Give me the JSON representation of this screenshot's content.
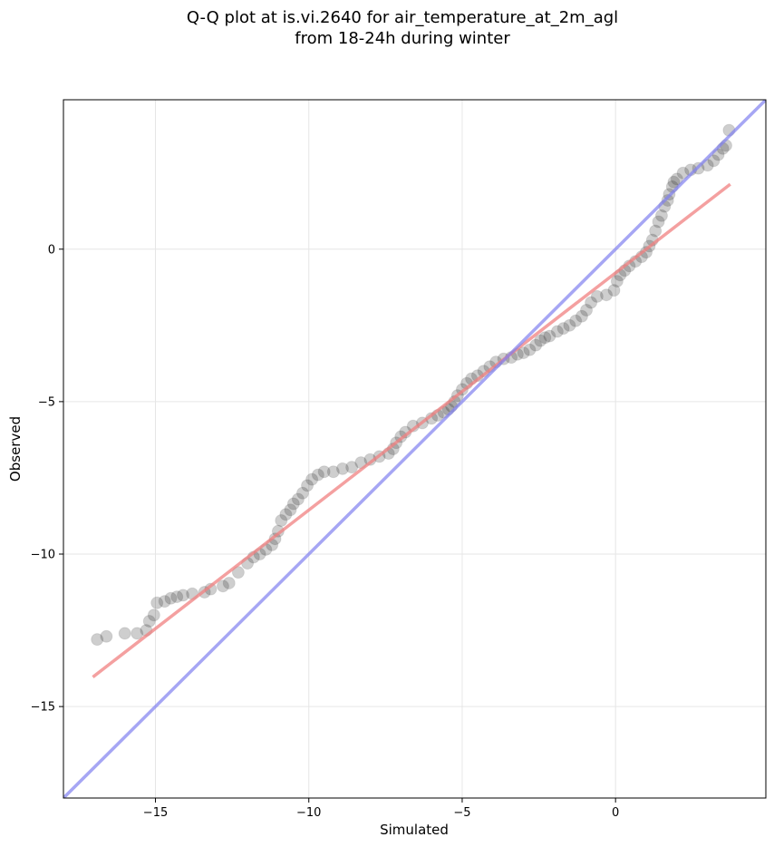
{
  "chart_data": {
    "type": "scatter",
    "title_lines": [
      "Q-Q plot at is.vi.2640 for air_temperature_at_2m_agl",
      "from 18-24h during winter"
    ],
    "xlabel": "Simulated",
    "ylabel": "Observed",
    "xlim": [
      -18.0,
      4.9
    ],
    "ylim": [
      -18.0,
      4.9
    ],
    "x_ticks": [
      -15,
      -10,
      -5,
      0
    ],
    "y_ticks": [
      -15,
      -10,
      -5,
      0
    ],
    "x_tick_labels": [
      "−15",
      "−10",
      "−5",
      "0"
    ],
    "y_tick_labels": [
      "−15",
      "−10",
      "−5",
      "0"
    ],
    "grid": true,
    "legend": "none",
    "colors": {
      "points": "#222222",
      "fit_line": "#f08080",
      "identity_line": "#8080f0",
      "grid": "#e6e6e6"
    },
    "series": [
      {
        "type": "scatter",
        "points": [
          [
            -16.9,
            -12.8
          ],
          [
            -16.6,
            -12.7
          ],
          [
            -16.0,
            -12.6
          ],
          [
            -15.6,
            -12.6
          ],
          [
            -15.3,
            -12.5
          ],
          [
            -15.2,
            -12.2
          ],
          [
            -15.05,
            -12.0
          ],
          [
            -14.95,
            -11.6
          ],
          [
            -14.7,
            -11.55
          ],
          [
            -14.5,
            -11.45
          ],
          [
            -14.3,
            -11.4
          ],
          [
            -14.1,
            -11.35
          ],
          [
            -13.8,
            -11.3
          ],
          [
            -13.4,
            -11.25
          ],
          [
            -13.2,
            -11.15
          ],
          [
            -12.8,
            -11.05
          ],
          [
            -12.6,
            -10.95
          ],
          [
            -12.3,
            -10.6
          ],
          [
            -12.0,
            -10.3
          ],
          [
            -11.8,
            -10.1
          ],
          [
            -11.6,
            -10.0
          ],
          [
            -11.4,
            -9.85
          ],
          [
            -11.2,
            -9.7
          ],
          [
            -11.1,
            -9.5
          ],
          [
            -11.0,
            -9.25
          ],
          [
            -10.9,
            -8.9
          ],
          [
            -10.75,
            -8.7
          ],
          [
            -10.6,
            -8.55
          ],
          [
            -10.5,
            -8.35
          ],
          [
            -10.35,
            -8.2
          ],
          [
            -10.2,
            -8.0
          ],
          [
            -10.05,
            -7.75
          ],
          [
            -9.9,
            -7.55
          ],
          [
            -9.7,
            -7.4
          ],
          [
            -9.5,
            -7.3
          ],
          [
            -9.2,
            -7.3
          ],
          [
            -8.9,
            -7.2
          ],
          [
            -8.6,
            -7.15
          ],
          [
            -8.3,
            -7.0
          ],
          [
            -8.0,
            -6.9
          ],
          [
            -7.7,
            -6.8
          ],
          [
            -7.4,
            -6.7
          ],
          [
            -7.25,
            -6.55
          ],
          [
            -7.15,
            -6.35
          ],
          [
            -7.0,
            -6.15
          ],
          [
            -6.85,
            -6.0
          ],
          [
            -6.6,
            -5.8
          ],
          [
            -6.3,
            -5.7
          ],
          [
            -6.0,
            -5.55
          ],
          [
            -5.8,
            -5.45
          ],
          [
            -5.6,
            -5.35
          ],
          [
            -5.45,
            -5.25
          ],
          [
            -5.35,
            -5.15
          ],
          [
            -5.25,
            -5.0
          ],
          [
            -5.15,
            -4.8
          ],
          [
            -5.0,
            -4.6
          ],
          [
            -4.85,
            -4.4
          ],
          [
            -4.7,
            -4.25
          ],
          [
            -4.5,
            -4.15
          ],
          [
            -4.3,
            -4.0
          ],
          [
            -4.1,
            -3.85
          ],
          [
            -3.9,
            -3.7
          ],
          [
            -3.65,
            -3.6
          ],
          [
            -3.4,
            -3.55
          ],
          [
            -3.2,
            -3.45
          ],
          [
            -3.0,
            -3.4
          ],
          [
            -2.8,
            -3.3
          ],
          [
            -2.6,
            -3.15
          ],
          [
            -2.45,
            -3.0
          ],
          [
            -2.3,
            -2.9
          ],
          [
            -2.15,
            -2.85
          ],
          [
            -1.9,
            -2.7
          ],
          [
            -1.7,
            -2.6
          ],
          [
            -1.5,
            -2.5
          ],
          [
            -1.3,
            -2.35
          ],
          [
            -1.1,
            -2.2
          ],
          [
            -0.95,
            -2.0
          ],
          [
            -0.8,
            -1.75
          ],
          [
            -0.6,
            -1.55
          ],
          [
            -0.3,
            -1.5
          ],
          [
            -0.05,
            -1.35
          ],
          [
            0.05,
            -1.05
          ],
          [
            0.15,
            -0.85
          ],
          [
            0.3,
            -0.7
          ],
          [
            0.45,
            -0.55
          ],
          [
            0.65,
            -0.4
          ],
          [
            0.85,
            -0.25
          ],
          [
            1.0,
            -0.1
          ],
          [
            1.1,
            0.1
          ],
          [
            1.2,
            0.3
          ],
          [
            1.3,
            0.6
          ],
          [
            1.4,
            0.9
          ],
          [
            1.5,
            1.1
          ],
          [
            1.6,
            1.4
          ],
          [
            1.7,
            1.6
          ],
          [
            1.75,
            1.8
          ],
          [
            1.85,
            2.05
          ],
          [
            1.9,
            2.2
          ],
          [
            2.0,
            2.3
          ],
          [
            2.2,
            2.5
          ],
          [
            2.45,
            2.6
          ],
          [
            2.7,
            2.65
          ],
          [
            3.0,
            2.75
          ],
          [
            3.2,
            2.9
          ],
          [
            3.35,
            3.1
          ],
          [
            3.5,
            3.3
          ],
          [
            3.6,
            3.4
          ],
          [
            3.7,
            3.9
          ]
        ]
      },
      {
        "type": "line",
        "points": [
          [
            -17.0,
            -14.0
          ],
          [
            3.7,
            2.1
          ]
        ]
      },
      {
        "type": "line",
        "points": [
          [
            -18.0,
            -18.0
          ],
          [
            4.9,
            4.9
          ]
        ]
      }
    ]
  }
}
